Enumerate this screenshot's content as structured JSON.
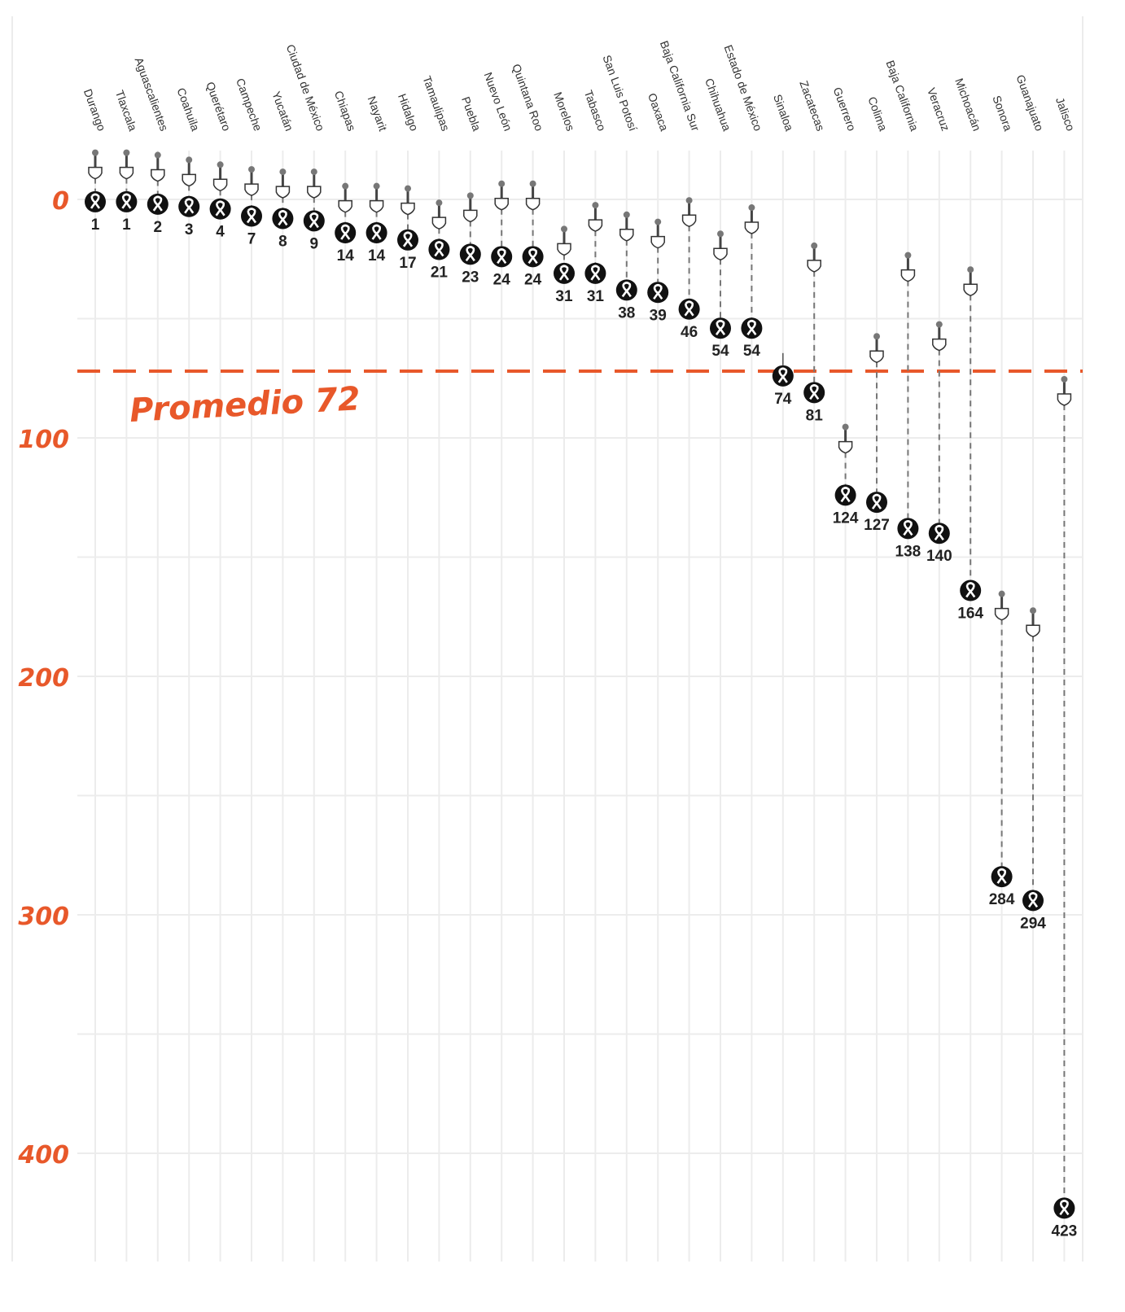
{
  "chart_data": {
    "type": "scatter",
    "title": "",
    "xlabel": "",
    "ylabel": "",
    "ylim": [
      0,
      423
    ],
    "y_inverted": true,
    "yticks": [
      "0",
      "100",
      "200",
      "300",
      "400"
    ],
    "grid": true,
    "average": {
      "value": 72,
      "label": "Promedio 72"
    },
    "categories": [
      "Durango",
      "Tlaxcala",
      "Aguascalientes",
      "Coahuila",
      "Querétaro",
      "Campeche",
      "Yucatán",
      "Ciudad de México",
      "Chiapas",
      "Nayarit",
      "Hidalgo",
      "Tamaulipas",
      "Puebla",
      "Nuevo León",
      "Quintana Roo",
      "Morelos",
      "Tabasco",
      "San Luis Potosí",
      "Oaxaca",
      "Baja California Sur",
      "Chihuahua",
      "Estado de México",
      "Sinaloa",
      "Zacatecas",
      "Guerrero",
      "Colima",
      "Baja California",
      "Veracruz",
      "Michoacán",
      "Sonora",
      "Guanajuato",
      "Jalisco"
    ],
    "series": [
      {
        "name": "value",
        "values": [
          1,
          1,
          2,
          3,
          4,
          7,
          8,
          9,
          14,
          14,
          17,
          21,
          23,
          24,
          24,
          31,
          31,
          38,
          39,
          46,
          54,
          54,
          74,
          81,
          124,
          127,
          138,
          140,
          164,
          284,
          294,
          423
        ]
      },
      {
        "name": "start marker (estimated)",
        "values": [
          -9,
          -9,
          -8,
          -6,
          -4,
          -2,
          -1,
          -1,
          5,
          5,
          6,
          12,
          9,
          4,
          4,
          23,
          13,
          17,
          20,
          11,
          25,
          14,
          null,
          30,
          106,
          68,
          34,
          63,
          40,
          176,
          183,
          86
        ]
      }
    ]
  },
  "colors": {
    "accent": "#e8582a",
    "marker": "#111111",
    "grid": "#ececec",
    "stem": "#777777"
  }
}
